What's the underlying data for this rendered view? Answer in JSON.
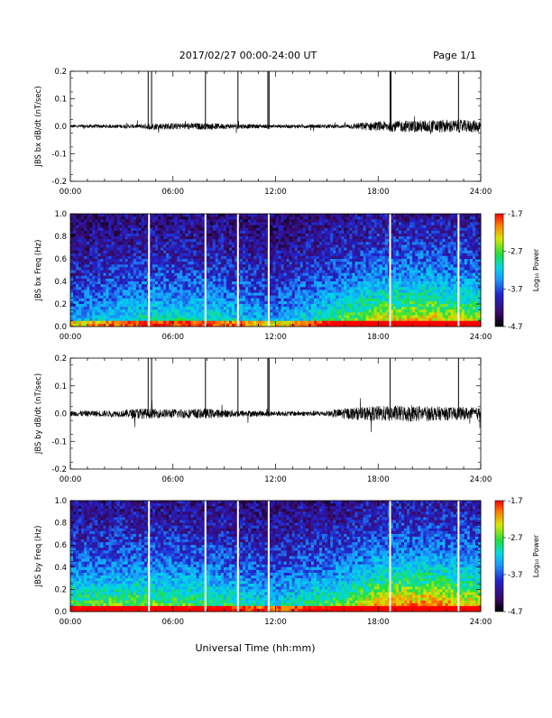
{
  "header": {
    "title": "2017/02/27  00:00-24:00 UT",
    "page": "Page 1/1"
  },
  "footer": {
    "xlabel": "Universal Time (hh:mm)"
  },
  "colorbar": {
    "label": "Log₁₀ Power",
    "ticks": [
      "-1.7",
      "-2.7",
      "-3.7",
      "-4.7"
    ],
    "range": [
      -4.7,
      -1.7
    ]
  },
  "colors": {
    "trace": "#000000",
    "colormap": [
      "#000000",
      "#3a0a6a",
      "#2222cc",
      "#1a9aff",
      "#00d8e8",
      "#20e040",
      "#d8e800",
      "#ff7a00",
      "#ff0000"
    ]
  },
  "chart_data": [
    {
      "type": "line",
      "name": "bx-waveform",
      "ylabel": "JBS bx dB/dt (nT/sec)",
      "xlim": [
        0,
        24
      ],
      "ylim": [
        -0.2,
        0.2
      ],
      "x_ticks": [
        "00:00",
        "06:00",
        "12:00",
        "18:00",
        "24:00"
      ],
      "y_ticks": [
        "0.2",
        "0.1",
        "0.0",
        "-0.1",
        "-0.2"
      ],
      "spikes_hours": [
        4.55,
        4.75,
        7.9,
        9.8,
        11.55,
        11.62,
        18.7,
        18.75,
        22.7
      ],
      "noise_envelope": [
        [
          0,
          0.006
        ],
        [
          4,
          0.007
        ],
        [
          4.6,
          0.012
        ],
        [
          8,
          0.012
        ],
        [
          9,
          0.01
        ],
        [
          12,
          0.006
        ],
        [
          16,
          0.007
        ],
        [
          17,
          0.014
        ],
        [
          18,
          0.018
        ],
        [
          20,
          0.022
        ],
        [
          22,
          0.024
        ],
        [
          24,
          0.022
        ]
      ]
    },
    {
      "type": "heatmap",
      "name": "bx-spectrogram",
      "ylabel": "JBS bx Freq (Hz)",
      "xlim": [
        0,
        24
      ],
      "ylim": [
        0.0,
        1.0
      ],
      "x_ticks": [
        "00:00",
        "06:00",
        "12:00",
        "18:00",
        "24:00"
      ],
      "y_ticks": [
        "1.0",
        "0.8",
        "0.6",
        "0.4",
        "0.2",
        "0.0"
      ],
      "gaps_hours": [
        4.6,
        7.9,
        9.8,
        11.6,
        18.7,
        22.7
      ],
      "activity_hours": [
        [
          0,
          0.35
        ],
        [
          4,
          0.5
        ],
        [
          8,
          0.5
        ],
        [
          12,
          0.35
        ],
        [
          16,
          0.6
        ],
        [
          18,
          0.75
        ],
        [
          21,
          0.8
        ],
        [
          24,
          0.7
        ]
      ]
    },
    {
      "type": "line",
      "name": "by-waveform",
      "ylabel": "JBS by dB/dt (nT/sec)",
      "xlim": [
        0,
        24
      ],
      "ylim": [
        -0.2,
        0.2
      ],
      "x_ticks": [
        "00:00",
        "06:00",
        "12:00",
        "18:00",
        "24:00"
      ],
      "y_ticks": [
        "0.2",
        "0.1",
        "0.0",
        "-0.1",
        "-0.2"
      ],
      "spikes_hours": [
        4.55,
        4.75,
        7.9,
        9.8,
        11.55,
        11.62,
        18.7,
        22.7
      ],
      "noise_envelope": [
        [
          0,
          0.01
        ],
        [
          3,
          0.012
        ],
        [
          4,
          0.02
        ],
        [
          5,
          0.016
        ],
        [
          8,
          0.018
        ],
        [
          9,
          0.014
        ],
        [
          12,
          0.009
        ],
        [
          15,
          0.01
        ],
        [
          16,
          0.02
        ],
        [
          18,
          0.028
        ],
        [
          20,
          0.03
        ],
        [
          22,
          0.024
        ],
        [
          24,
          0.022
        ]
      ]
    },
    {
      "type": "heatmap",
      "name": "by-spectrogram",
      "ylabel": "JBS by Freq (Hz)",
      "xlim": [
        0,
        24
      ],
      "ylim": [
        0.0,
        1.0
      ],
      "x_ticks": [
        "00:00",
        "06:00",
        "12:00",
        "18:00",
        "24:00"
      ],
      "y_ticks": [
        "1.0",
        "0.8",
        "0.6",
        "0.4",
        "0.2",
        "0.0"
      ],
      "gaps_hours": [
        4.6,
        7.9,
        9.8,
        11.6,
        18.7,
        22.7
      ],
      "activity_hours": [
        [
          0,
          0.6
        ],
        [
          4,
          0.65
        ],
        [
          8,
          0.6
        ],
        [
          12,
          0.45
        ],
        [
          16,
          0.65
        ],
        [
          18,
          0.85
        ],
        [
          21,
          0.9
        ],
        [
          24,
          0.8
        ]
      ]
    }
  ]
}
